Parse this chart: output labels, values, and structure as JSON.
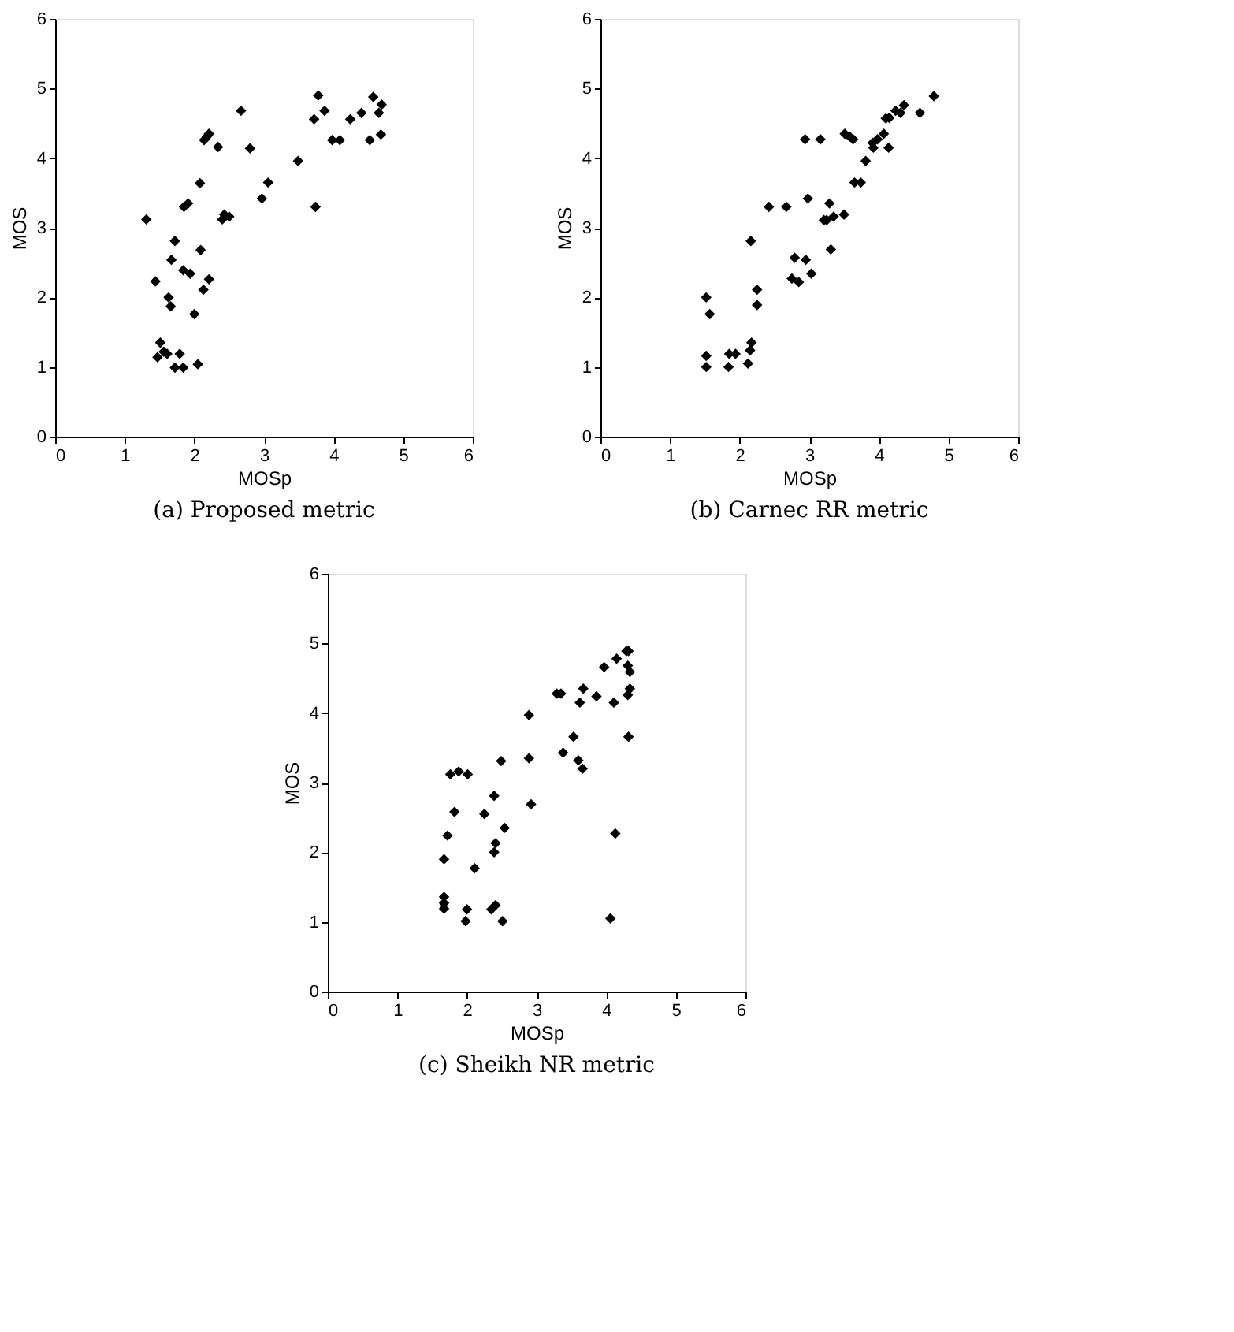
{
  "chart_data": [
    {
      "type": "scatter",
      "title": "(a) Proposed metric",
      "xlabel": "MOSp",
      "ylabel": "MOS",
      "xlim": [
        0,
        6
      ],
      "ylim": [
        0,
        6
      ],
      "xticks": [
        0,
        1,
        2,
        3,
        4,
        5,
        6
      ],
      "yticks": [
        0,
        1,
        2,
        3,
        4,
        5,
        6
      ],
      "grid": false,
      "marker": "diamond",
      "x": [
        1.31,
        1.44,
        1.51,
        1.47,
        1.56,
        1.61,
        1.63,
        1.66,
        1.67,
        1.72,
        1.72,
        1.79,
        1.84,
        1.84,
        1.85,
        1.91,
        1.94,
        2.0,
        2.05,
        2.08,
        2.09,
        2.13,
        2.14,
        2.18,
        2.21,
        2.21,
        2.34,
        2.4,
        2.43,
        2.5,
        2.67,
        2.8,
        2.97,
        3.06,
        3.49,
        3.72,
        3.74,
        3.78,
        3.87,
        3.98,
        4.09,
        4.24,
        4.4,
        4.52,
        4.57,
        4.65,
        4.68,
        4.69
      ],
      "series": [
        {
          "color": "#000000",
          "values": [
            3.12,
            2.23,
            1.35,
            1.14,
            1.22,
            1.19,
            2.0,
            1.87,
            2.54,
            2.81,
            0.99,
            1.19,
            2.39,
            0.99,
            3.3,
            3.35,
            2.34,
            1.76,
            1.04,
            3.64,
            2.68,
            2.11,
            4.26,
            4.31,
            4.35,
            2.26,
            4.16,
            3.12,
            3.19,
            3.16,
            4.68,
            4.14,
            3.42,
            3.65,
            3.96,
            4.56,
            3.3,
            4.9,
            4.68,
            4.26,
            4.26,
            4.56,
            4.65,
            4.26,
            4.88,
            4.65,
            4.34,
            4.77
          ]
        }
      ]
    },
    {
      "type": "scatter",
      "title": "(b) Carnec RR metric",
      "xlabel": "MOSp",
      "ylabel": "MOS",
      "xlim": [
        0,
        6
      ],
      "ylim": [
        0,
        6
      ],
      "xticks": [
        0,
        1,
        2,
        3,
        4,
        5,
        6
      ],
      "yticks": [
        0,
        1,
        2,
        3,
        4,
        5,
        6
      ],
      "grid": false,
      "marker": "diamond",
      "x": [
        1.52,
        1.57,
        1.52,
        1.52,
        1.84,
        1.85,
        1.94,
        2.12,
        2.15,
        2.17,
        2.16,
        2.25,
        2.25,
        2.42,
        2.67,
        2.75,
        2.79,
        2.85,
        2.94,
        2.95,
        2.98,
        3.03,
        3.16,
        3.21,
        3.25,
        3.29,
        3.31,
        3.35,
        3.5,
        3.51,
        3.58,
        3.63,
        3.65,
        3.74,
        3.81,
        3.91,
        3.92,
        3.98,
        4.07,
        4.1,
        4.14,
        4.15,
        4.24,
        4.31,
        4.36,
        4.59,
        4.79
      ],
      "series": [
        {
          "color": "#000000",
          "values": [
            2.0,
            1.76,
            1.16,
            1.0,
            1.0,
            1.19,
            1.19,
            1.05,
            1.24,
            1.35,
            2.81,
            2.11,
            1.89,
            3.3,
            3.3,
            2.27,
            2.57,
            2.22,
            4.27,
            2.54,
            3.42,
            2.34,
            4.27,
            3.11,
            3.11,
            3.35,
            2.69,
            3.16,
            3.19,
            4.35,
            4.31,
            4.27,
            3.65,
            3.65,
            3.96,
            4.22,
            4.15,
            4.27,
            4.35,
            4.57,
            4.15,
            4.58,
            4.68,
            4.65,
            4.76,
            4.65,
            4.89
          ]
        }
      ]
    },
    {
      "type": "scatter",
      "title": "(c) Sheikh NR metric",
      "xlabel": "MOSp",
      "ylabel": "MOS",
      "xlim": [
        0,
        6
      ],
      "ylim": [
        0,
        6
      ],
      "xticks": [
        0,
        1,
        2,
        3,
        4,
        5,
        6
      ],
      "yticks": [
        0,
        1,
        2,
        3,
        4,
        5,
        6
      ],
      "grid": false,
      "marker": "diamond",
      "x": [
        1.76,
        1.88,
        2.01,
        1.82,
        1.72,
        1.67,
        1.67,
        1.67,
        1.67,
        2.0,
        1.98,
        2.11,
        2.25,
        2.39,
        2.41,
        2.39,
        2.35,
        2.41,
        2.51,
        2.49,
        2.54,
        2.89,
        2.89,
        2.92,
        3.29,
        3.35,
        3.38,
        3.53,
        3.6,
        3.62,
        3.66,
        3.67,
        3.86,
        3.97,
        4.06,
        4.11,
        4.13,
        4.15,
        4.29,
        4.32,
        4.31,
        4.34,
        4.31,
        4.34,
        4.32
      ],
      "series": [
        {
          "color": "#000000",
          "values": [
            3.12,
            3.16,
            3.12,
            2.58,
            2.24,
            1.9,
            1.36,
            1.27,
            1.19,
            1.18,
            1.01,
            1.77,
            2.55,
            2.81,
            2.13,
            2.0,
            1.18,
            1.24,
            1.01,
            3.31,
            2.35,
            3.97,
            3.35,
            2.69,
            4.28,
            4.28,
            3.43,
            3.66,
            3.32,
            4.15,
            3.2,
            4.35,
            4.24,
            4.66,
            1.05,
            4.15,
            2.27,
            4.78,
            4.89,
            4.89,
            4.68,
            4.59,
            4.26,
            4.35,
            3.66
          ]
        }
      ]
    }
  ]
}
